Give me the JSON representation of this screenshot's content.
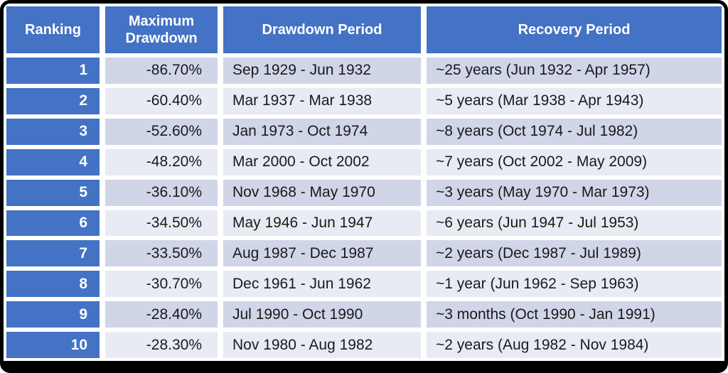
{
  "colors": {
    "header_blue": "#4472C4",
    "band_dark": "#D0D5E8",
    "band_light": "#E9EBF4",
    "gap_white": "#FFFFFF",
    "frame_border": "#000000",
    "header_text": "#FFFFFF",
    "body_text": "#1A1A1A"
  },
  "chart_data": {
    "type": "table",
    "title": "",
    "columns": [
      {
        "label": "Ranking"
      },
      {
        "label": "Maximum Drawdown"
      },
      {
        "label": "Drawdown Period"
      },
      {
        "label": "Recovery Period"
      }
    ],
    "rows": [
      {
        "ranking": "1",
        "max_drawdown": "-86.70%",
        "drawdown_period": "Sep 1929 - Jun 1932",
        "recovery_period": "~25 years (Jun 1932 - Apr 1957)"
      },
      {
        "ranking": "2",
        "max_drawdown": "-60.40%",
        "drawdown_period": "Mar 1937 - Mar 1938",
        "recovery_period": "~5 years (Mar 1938 - Apr 1943)"
      },
      {
        "ranking": "3",
        "max_drawdown": "-52.60%",
        "drawdown_period": "Jan 1973 - Oct 1974",
        "recovery_period": "~8 years (Oct 1974 - Jul 1982)"
      },
      {
        "ranking": "4",
        "max_drawdown": "-48.20%",
        "drawdown_period": "Mar 2000 - Oct 2002",
        "recovery_period": "~7 years (Oct 2002 - May 2009)"
      },
      {
        "ranking": "5",
        "max_drawdown": "-36.10%",
        "drawdown_period": "Nov 1968 - May 1970",
        "recovery_period": "~3 years (May 1970 - Mar 1973)"
      },
      {
        "ranking": "6",
        "max_drawdown": "-34.50%",
        "drawdown_period": "May 1946 - Jun 1947",
        "recovery_period": "~6 years (Jun 1947 - Jul 1953)"
      },
      {
        "ranking": "7",
        "max_drawdown": "-33.50%",
        "drawdown_period": "Aug 1987 - Dec 1987",
        "recovery_period": "~2 years (Dec 1987 - Jul 1989)"
      },
      {
        "ranking": "8",
        "max_drawdown": "-30.70%",
        "drawdown_period": "Dec 1961 - Jun 1962",
        "recovery_period": "~1 year (Jun 1962 - Sep 1963)"
      },
      {
        "ranking": "9",
        "max_drawdown": "-28.40%",
        "drawdown_period": "Jul 1990 - Oct 1990",
        "recovery_period": "~3 months (Oct 1990 - Jan 1991)"
      },
      {
        "ranking": "10",
        "max_drawdown": "-28.30%",
        "drawdown_period": "Nov 1980 - Aug 1982",
        "recovery_period": "~2 years (Aug 1982 - Nov 1984)"
      }
    ]
  }
}
